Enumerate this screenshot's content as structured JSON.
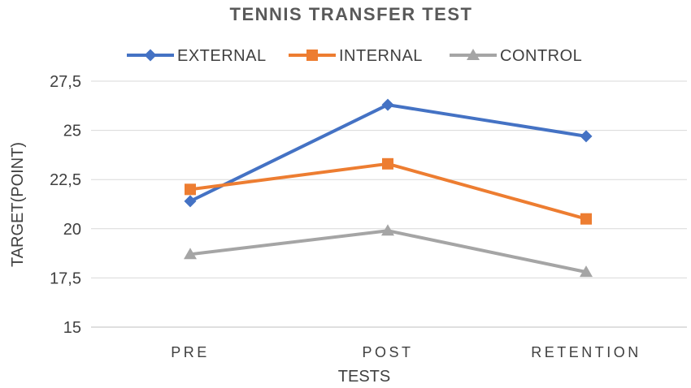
{
  "chart_data": {
    "type": "line",
    "title": "TENNIS TRANSFER TEST",
    "xlabel": "TESTS",
    "ylabel": "TARGET(POINT)",
    "categories": [
      "PRE",
      "POST",
      "RETENTION"
    ],
    "ylim": [
      15,
      27.5
    ],
    "yticks": [
      15,
      17.5,
      20,
      22.5,
      25,
      27.5
    ],
    "ytick_labels": [
      "15",
      "17,5",
      "20",
      "22,5",
      "25",
      "27,5"
    ],
    "grid": true,
    "legend_position": "top",
    "series": [
      {
        "name": "EXTERNAL",
        "values": [
          21.4,
          26.3,
          24.7
        ],
        "color": "#4472C4",
        "marker": "diamond"
      },
      {
        "name": "INTERNAL",
        "values": [
          22.0,
          23.3,
          20.5
        ],
        "color": "#ED7D31",
        "marker": "square"
      },
      {
        "name": "CONTROL",
        "values": [
          18.7,
          19.9,
          17.8
        ],
        "color": "#A5A5A5",
        "marker": "triangle"
      }
    ]
  }
}
